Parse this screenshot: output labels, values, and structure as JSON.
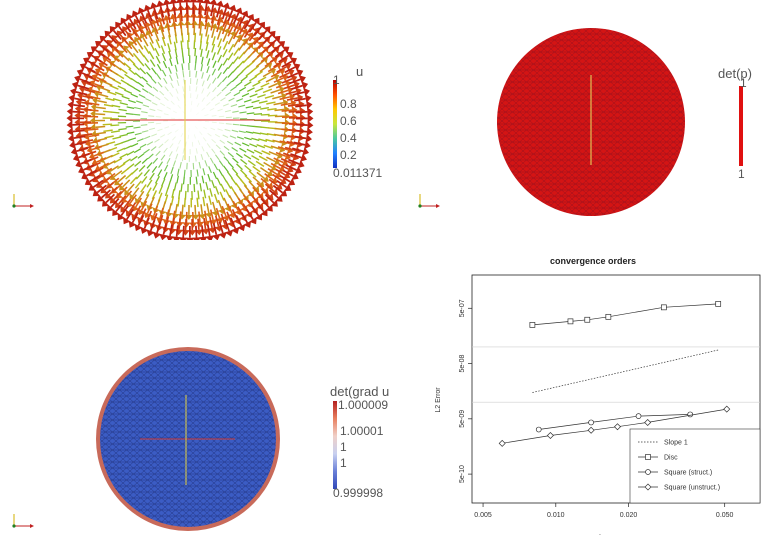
{
  "panels": {
    "p1": {
      "colorbar_title": "u",
      "tick_labels": [
        "1",
        "0.8",
        "0.6",
        "0.4",
        "0.2",
        "0.011371"
      ]
    },
    "p2": {
      "colorbar_title": "det(p)",
      "tick_labels": [
        "1",
        "1"
      ]
    },
    "p3": {
      "colorbar_title": "det(grad u",
      "tick_labels": [
        "1.000009",
        "1.00001",
        "1",
        "1",
        "0.999998"
      ]
    }
  },
  "chart_data": {
    "type": "line",
    "title": "convergence orders",
    "xlabel": ".",
    "ylabel": "L2 Error",
    "x_scale": "log",
    "y_scale": "log",
    "xlim": [
      0.0045,
      0.07
    ],
    "ylim": [
      1.5e-10,
      2e-06
    ],
    "x_ticks": [
      0.005,
      0.01,
      0.02,
      0.05
    ],
    "x_tick_labels": [
      "0.005",
      "0.010",
      "0.020",
      "0.050"
    ],
    "y_ticks": [
      5e-10,
      5e-09,
      5e-08,
      5e-07
    ],
    "y_tick_labels": [
      "5e-10",
      "5e-09",
      "5e-08",
      "5e-07"
    ],
    "h_lines": [
      1e-07,
      1e-08
    ],
    "legend_position": "bottom-right",
    "series": [
      {
        "name": "Slope 1",
        "style": "dotted",
        "marker": "none",
        "x": [
          0.008,
          0.047
        ],
        "y": [
          1.5e-08,
          8.8e-08
        ]
      },
      {
        "name": "Disc",
        "style": "solid",
        "marker": "square",
        "x": [
          0.008,
          0.0115,
          0.0135,
          0.0165,
          0.028,
          0.047
        ],
        "y": [
          2.5e-07,
          2.9e-07,
          3.1e-07,
          3.5e-07,
          5.2e-07,
          6e-07
        ]
      },
      {
        "name": "Square (struct.)",
        "style": "solid",
        "marker": "circle",
        "x": [
          0.0085,
          0.014,
          0.022,
          0.036
        ],
        "y": [
          3.2e-09,
          4.3e-09,
          5.6e-09,
          6e-09
        ]
      },
      {
        "name": "Square (unstruct.)",
        "style": "solid",
        "marker": "diamond",
        "x": [
          0.006,
          0.0095,
          0.014,
          0.018,
          0.024,
          0.051
        ],
        "y": [
          1.8e-09,
          2.5e-09,
          3.1e-09,
          3.6e-09,
          4.3e-09,
          7.5e-09
        ]
      }
    ]
  }
}
